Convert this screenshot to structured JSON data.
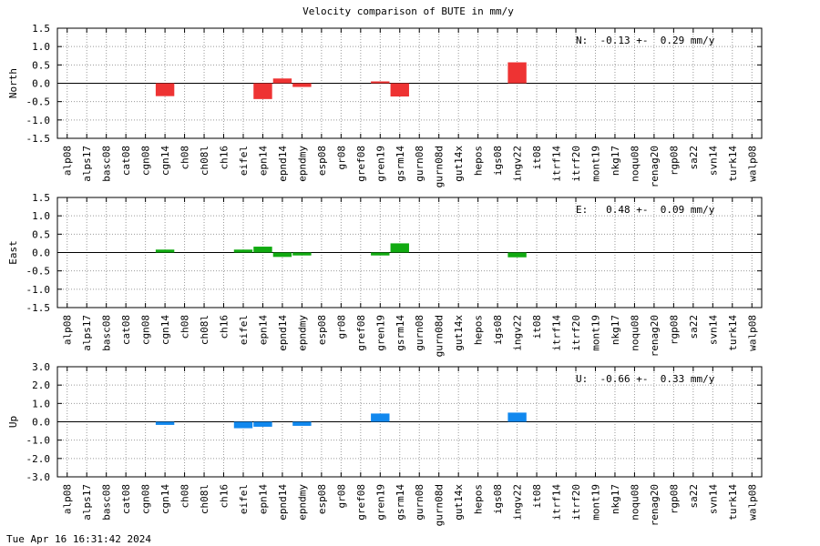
{
  "title": "Velocity comparison of BUTE in mm/y",
  "timestamp": "Tue Apr 16 16:31:42 2024",
  "chart_data": [
    {
      "type": "bar",
      "ylabel": "North",
      "ylim": [
        -1.5,
        1.5
      ],
      "yticks": [
        "1.5",
        "1.0",
        "0.5",
        "0.0",
        "-0.5",
        "-1.0",
        "-1.5"
      ],
      "annotation": "N:  -0.13 +-  0.29 mm/y",
      "color": "#ee3333",
      "grid": true,
      "categories": [
        "alp08",
        "alps17",
        "basc08",
        "cat08",
        "cgn08",
        "cgn14",
        "ch08",
        "ch08l",
        "ch16",
        "eifel",
        "epn14",
        "epnd14",
        "epndmy",
        "esp08",
        "gr08",
        "gref08",
        "gren19",
        "gsrm14",
        "gurn08",
        "gurn08d",
        "gut14x",
        "hepos",
        "igs08",
        "ingv22",
        "it08",
        "itrf14",
        "itrf20",
        "mont19",
        "nkg17",
        "noqu08",
        "renag20",
        "rgp08",
        "sa22",
        "svn14",
        "turk14",
        "walp08"
      ],
      "values": [
        null,
        null,
        null,
        null,
        null,
        -0.35,
        null,
        null,
        null,
        null,
        -0.43,
        0.13,
        -0.1,
        null,
        null,
        null,
        0.05,
        -0.36,
        null,
        null,
        null,
        null,
        null,
        0.57,
        null,
        null,
        null,
        null,
        null,
        null,
        null,
        null,
        null,
        null,
        null,
        null
      ]
    },
    {
      "type": "bar",
      "ylabel": "East",
      "ylim": [
        -1.5,
        1.5
      ],
      "yticks": [
        "1.5",
        "1.0",
        "0.5",
        "0.0",
        "-0.5",
        "-1.0",
        "-1.5"
      ],
      "annotation": "E:   0.48 +-  0.09 mm/y",
      "color": "#11aa11",
      "grid": true,
      "categories": [
        "alp08",
        "alps17",
        "basc08",
        "cat08",
        "cgn08",
        "cgn14",
        "ch08",
        "ch08l",
        "ch16",
        "eifel",
        "epn14",
        "epnd14",
        "epndmy",
        "esp08",
        "gr08",
        "gref08",
        "gren19",
        "gsrm14",
        "gurn08",
        "gurn08d",
        "gut14x",
        "hepos",
        "igs08",
        "ingv22",
        "it08",
        "itrf14",
        "itrf20",
        "mont19",
        "nkg17",
        "noqu08",
        "renag20",
        "rgp08",
        "sa22",
        "svn14",
        "turk14",
        "walp08"
      ],
      "values": [
        null,
        null,
        null,
        null,
        null,
        0.08,
        null,
        null,
        null,
        0.08,
        0.16,
        -0.12,
        -0.08,
        null,
        null,
        null,
        -0.08,
        0.25,
        null,
        null,
        null,
        null,
        null,
        -0.13,
        null,
        null,
        null,
        null,
        null,
        null,
        null,
        null,
        null,
        null,
        null,
        null
      ]
    },
    {
      "type": "bar",
      "ylabel": "Up",
      "ylim": [
        -3.0,
        3.0
      ],
      "yticks": [
        "3.0",
        "2.0",
        "1.0",
        "0.0",
        "-1.0",
        "-2.0",
        "-3.0"
      ],
      "annotation": "U:  -0.66 +-  0.33 mm/y",
      "color": "#1188ee",
      "grid": true,
      "categories": [
        "alp08",
        "alps17",
        "basc08",
        "cat08",
        "cgn08",
        "cgn14",
        "ch08",
        "ch08l",
        "ch16",
        "eifel",
        "epn14",
        "epnd14",
        "epndmy",
        "esp08",
        "gr08",
        "gref08",
        "gren19",
        "gsrm14",
        "gurn08",
        "gurn08d",
        "gut14x",
        "hepos",
        "igs08",
        "ingv22",
        "it08",
        "itrf14",
        "itrf20",
        "mont19",
        "nkg17",
        "noqu08",
        "renag20",
        "rgp08",
        "sa22",
        "svn14",
        "turk14",
        "walp08"
      ],
      "values": [
        null,
        null,
        null,
        null,
        null,
        -0.17,
        null,
        null,
        null,
        -0.35,
        -0.27,
        null,
        -0.22,
        null,
        null,
        null,
        0.45,
        null,
        null,
        null,
        null,
        null,
        null,
        0.5,
        null,
        null,
        null,
        null,
        null,
        null,
        null,
        null,
        null,
        null,
        null,
        null
      ]
    }
  ]
}
